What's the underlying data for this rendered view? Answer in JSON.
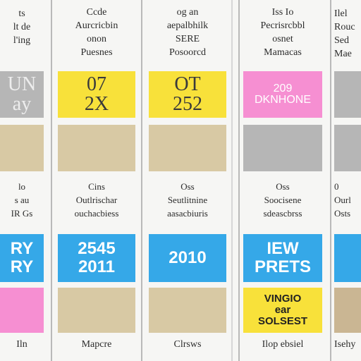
{
  "colors": {
    "gray": "#b6b6b6",
    "yellow": "#f8e13a",
    "tan": "#d8c9a4",
    "pink": "#f68fd2",
    "cyan": "#35a8e8",
    "light_tan": "#cab693"
  },
  "columns": [
    {
      "header": "ts\nlt de\nl'ing",
      "tile1": "UN\nay",
      "mid_text": "lo\ns au\nIR Gs",
      "tile3": "RY\nRY",
      "footer": "Iln"
    },
    {
      "header": "Ccde\nAurcricbin\nonon\nPuesnes",
      "tile1": "07\n2X",
      "mid_text": "Cins\nOutlrischar\nouchacbiess",
      "tile3": "2545\n2011",
      "footer": "Mapcre"
    },
    {
      "header": "og an\naepalbhilk\nSERE\nPosoorcd",
      "tile1": "OT\n252",
      "mid_text": "Oss\nSeutlitnine\naasacbiuris",
      "tile3": "2010",
      "footer": "Clrsws"
    },
    {
      "header": "Iss Io\nPecrisrcbbl\nosnet\nMamacas",
      "tile1": "209\nDKNHONE",
      "mid_text": "Oss\nSoocisene\nsdeascbrss",
      "tile3": "IEW\nPRETS",
      "tile4": "VINGIO\near\nSOLSEST",
      "footer": "Ilop ebsiel"
    },
    {
      "header": "Ilel\nRouc\nSed\nMae",
      "tile1": "",
      "mid_text": "0\nOurl\nOsts",
      "tile3": "",
      "footer": "Isehy"
    }
  ]
}
